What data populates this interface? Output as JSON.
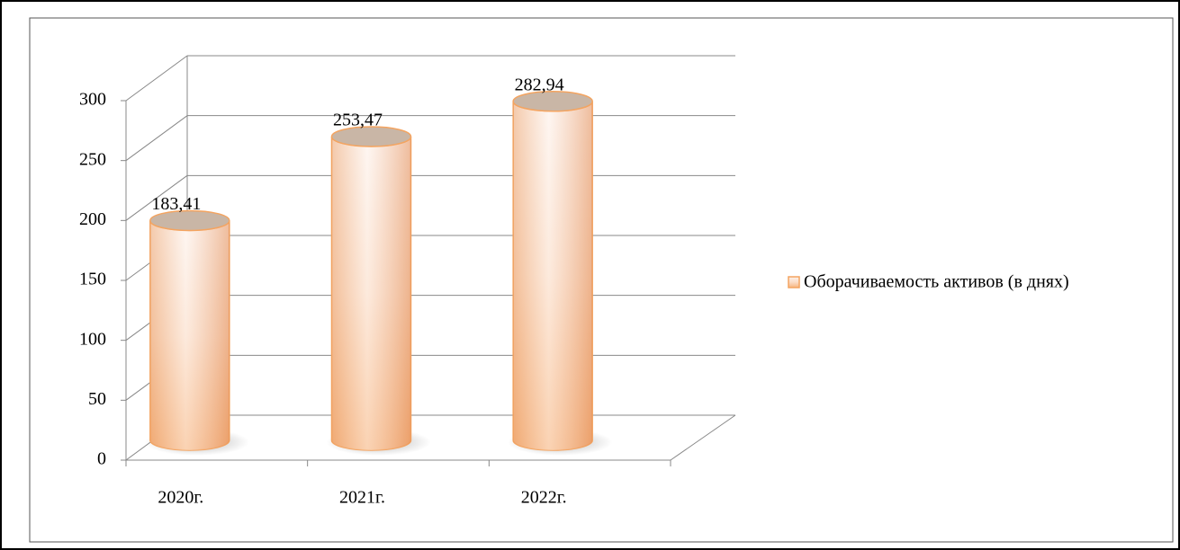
{
  "chart_data": {
    "type": "bar",
    "categories": [
      "2020г.",
      "2021г.",
      "2022г."
    ],
    "series": [
      {
        "name": "Оборачиваемость активов (в днях)",
        "color": "#f4a460",
        "values": [
          183.41,
          253.47,
          282.94
        ],
        "value_labels": [
          "183,41",
          "253,47",
          "282,94"
        ]
      }
    ],
    "ylim": [
      0,
      300
    ],
    "yticks": [
      0,
      50,
      100,
      150,
      200,
      250,
      300
    ],
    "grid": true,
    "legend": "right"
  }
}
